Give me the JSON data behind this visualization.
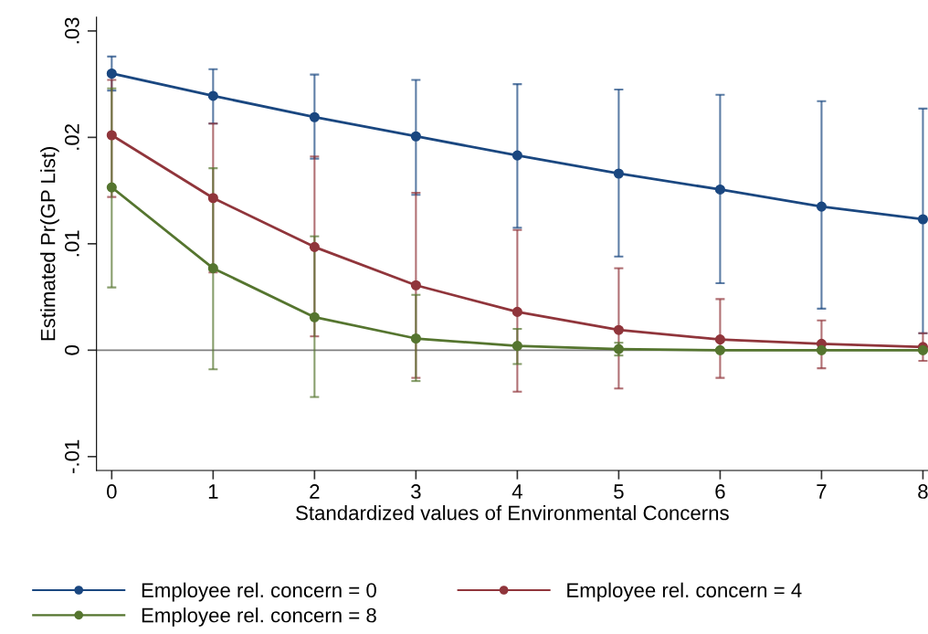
{
  "chart_data": {
    "type": "line",
    "xlabel": "Standardized values of Environmental Concerns",
    "ylabel": "Estimated Pr(GP List)",
    "x": [
      0,
      1,
      2,
      3,
      4,
      5,
      6,
      7,
      8
    ],
    "series": [
      {
        "name": "Employee rel. concern = 0",
        "color": "#1a4780",
        "values": [
          0.026,
          0.0239,
          0.0219,
          0.0201,
          0.0183,
          0.0166,
          0.0151,
          0.0135,
          0.0123
        ],
        "errors": [
          [
            0.0244,
            0.0276
          ],
          [
            0.0213,
            0.0264
          ],
          [
            0.018,
            0.0259
          ],
          [
            0.0146,
            0.0254
          ],
          [
            0.0115,
            0.025
          ],
          [
            0.0088,
            0.0245
          ],
          [
            0.0063,
            0.024
          ],
          [
            0.0039,
            0.0234
          ],
          [
            0.0016,
            0.0227
          ]
        ]
      },
      {
        "name": "Employee rel. concern = 4",
        "color": "#90353b",
        "values": [
          0.0202,
          0.0143,
          0.0097,
          0.0061,
          0.0036,
          0.0019,
          0.001,
          0.0006,
          0.0003
        ],
        "errors": [
          [
            0.0144,
            0.0254
          ],
          [
            0.0073,
            0.0213
          ],
          [
            0.0013,
            0.0182
          ],
          [
            -0.0026,
            0.0148
          ],
          [
            -0.0039,
            0.0113
          ],
          [
            -0.0036,
            0.0077
          ],
          [
            -0.0026,
            0.0048
          ],
          [
            -0.0017,
            0.0028
          ],
          [
            -0.001,
            0.0016
          ]
        ]
      },
      {
        "name": "Employee rel. concern = 8",
        "color": "#55752f",
        "values": [
          0.0153,
          0.0077,
          0.0031,
          0.0011,
          0.0004,
          0.0001,
          0.0,
          0.0,
          0.0
        ],
        "errors": [
          [
            0.0059,
            0.0246
          ],
          [
            -0.0018,
            0.0171
          ],
          [
            -0.0044,
            0.0107
          ],
          [
            -0.0029,
            0.0052
          ],
          [
            -0.0013,
            0.002
          ],
          [
            -0.0005,
            0.0007
          ],
          [
            -0.0001,
            0.0001
          ],
          [
            -0.0001,
            0.0001
          ],
          [
            -0.0001,
            0.0001
          ]
        ]
      }
    ],
    "xlim": [
      -0.15,
      8.05
    ],
    "xticks": [
      0,
      1,
      2,
      3,
      4,
      5,
      6,
      7,
      8
    ],
    "ylim": [
      -0.0113,
      0.0313
    ],
    "yticks": [
      {
        "value": -0.01,
        "label": "-.01"
      },
      {
        "value": 0,
        "label": "0"
      },
      {
        "value": 0.01,
        "label": ".01"
      },
      {
        "value": 0.02,
        "label": ".02"
      },
      {
        "value": 0.03,
        "label": ".03"
      }
    ],
    "ref_lines": [
      {
        "axis": "y",
        "value": 0,
        "color": "#808080"
      }
    ],
    "grid": false,
    "legend": "bottom",
    "marker": "circle",
    "line_style": "solid"
  }
}
